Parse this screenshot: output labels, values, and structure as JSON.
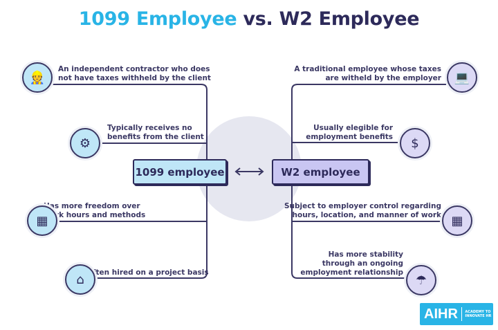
{
  "title": {
    "part1": "1099 Employee",
    "part2": "vs. W2 Employee"
  },
  "left": {
    "label": "1099 employee",
    "items": [
      {
        "text": "An independent contractor who does\nnot have taxes withheld by the client",
        "icon": "contractor-icon"
      },
      {
        "text": "Typically receives no\nbenefits from the client",
        "icon": "network-icon"
      },
      {
        "text": "Has more freedom over\nwork hours and methods",
        "icon": "calendar-icon"
      },
      {
        "text": "Often hired on a project basis",
        "icon": "project-icon"
      }
    ]
  },
  "right": {
    "label": "W2 employee",
    "items": [
      {
        "text": "A traditional employee whose taxes\nare witheld by the employer",
        "icon": "office-worker-icon"
      },
      {
        "text": "Usually elegible for\nemployment benefits",
        "icon": "benefits-icon"
      },
      {
        "text": "Subject to employer control regarding\nhours, location, and manner of work",
        "icon": "schedule-icon"
      },
      {
        "text": "Has more stability\nthrough an ongoing\nemployment relationship",
        "icon": "team-icon"
      }
    ]
  },
  "logo": {
    "brand": "AIHR",
    "tagline": "ACADEMY TO INNOVATE HR"
  },
  "colors": {
    "cyan": "#29b4e6",
    "navy": "#2d2a5a",
    "lightblue": "#bfe6f7",
    "lavender": "#c9c6f2",
    "circle": "#e6e7f0"
  }
}
